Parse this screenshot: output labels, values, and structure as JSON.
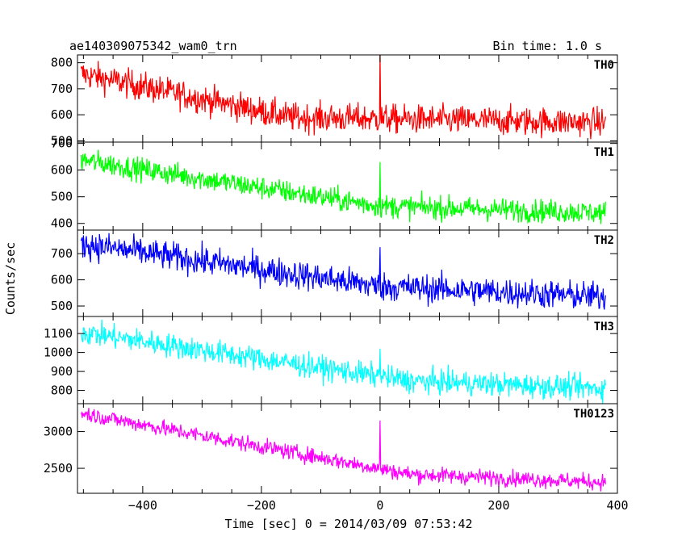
{
  "header": {
    "title": "ae140309075342_wam0_trn",
    "bin_time": "Bin time: 1.0 s"
  },
  "axes": {
    "xlabel": "Time [sec] 0 = 2014/03/09 07:53:42",
    "ylabel": "Counts/sec"
  },
  "chart_data": {
    "type": "line",
    "x_range": [
      -510,
      400
    ],
    "x_ticks": [
      -400,
      -200,
      0,
      200,
      400
    ],
    "panels": [
      {
        "name": "TH0",
        "color": "#ff0000",
        "ylim": [
          495,
          830
        ],
        "yticks": [
          500,
          600,
          700,
          800
        ],
        "start": 760,
        "end": 570,
        "knee_x": -150,
        "knee_y": 590,
        "noise": 28,
        "spike": 845
      },
      {
        "name": "TH1",
        "color": "#00ff00",
        "ylim": [
          375,
          705
        ],
        "yticks": [
          400,
          500,
          600,
          700
        ],
        "start": 640,
        "end": 440,
        "knee_x": 0,
        "knee_y": 465,
        "noise": 22,
        "spike": 630
      },
      {
        "name": "TH2",
        "color": "#0000ff",
        "ylim": [
          460,
          790
        ],
        "yticks": [
          500,
          600,
          700
        ],
        "start": 740,
        "end": 535,
        "knee_x": 0,
        "knee_y": 575,
        "noise": 28,
        "spike": 725
      },
      {
        "name": "TH3",
        "color": "#00ffff",
        "ylim": [
          730,
          1190
        ],
        "yticks": [
          800,
          900,
          1000,
          1100
        ],
        "start": 1110,
        "end": 810,
        "knee_x": 50,
        "knee_y": 850,
        "noise": 32,
        "spike": 1020
      },
      {
        "name": "TH0123",
        "color": "#ff00ff",
        "ylim": [
          2160,
          3380
        ],
        "yticks": [
          2500,
          3000
        ],
        "start": 3260,
        "end": 2310,
        "knee_x": 50,
        "knee_y": 2420,
        "noise": 55,
        "spike": 3150
      }
    ]
  }
}
